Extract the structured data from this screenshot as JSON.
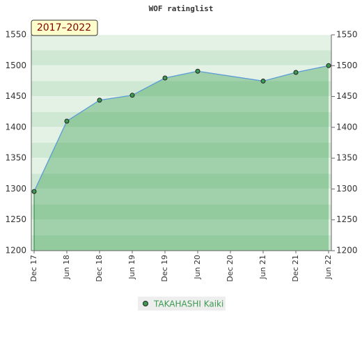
{
  "chart_data": {
    "type": "area",
    "title": "WOF ratinglist",
    "badge": "2017–2022",
    "categories": [
      "Dec 17",
      "Jun 18",
      "Dec 18",
      "Jun 19",
      "Dec 19",
      "Jun 20",
      "Dec 20",
      "Jun 21",
      "Dec 21",
      "Jun 22"
    ],
    "series": [
      {
        "name": "TAKAHASHI Kaiki",
        "color": "#5a9bd5",
        "marker_color": "#3d9a50",
        "x": [
          "Dec 17",
          "Jun 18",
          "Dec 18",
          "Jun 19",
          "Dec 19",
          "Jun 20",
          "Jun 21",
          "Dec 21",
          "Jun 22"
        ],
        "values": [
          1296,
          1410,
          1444,
          1452,
          1480,
          1491,
          1475,
          1489,
          1500
        ]
      }
    ],
    "ylim": [
      1200,
      1550
    ],
    "yticks": [
      1200,
      1250,
      1300,
      1350,
      1400,
      1450,
      1500,
      1550
    ],
    "y2lim": [
      1200,
      1550
    ],
    "y2ticks": [
      1200,
      1250,
      1300,
      1350,
      1400,
      1450,
      1500,
      1550
    ],
    "grid": true,
    "legend": "bottom"
  }
}
